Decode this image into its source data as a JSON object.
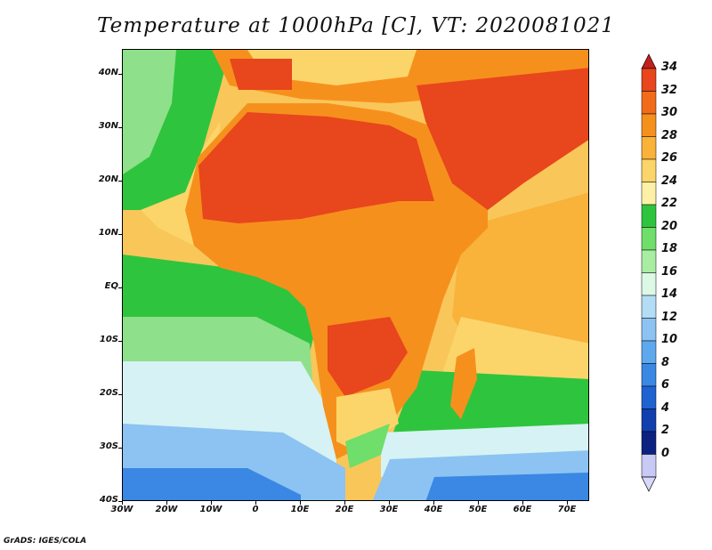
{
  "title": "Temperature at 1000hPa [C], VT: 2020081021",
  "footer": "GrADS: IGES/COLA",
  "x_ticks": [
    "30W",
    "20W",
    "10W",
    "0",
    "10E",
    "20E",
    "30E",
    "40E",
    "50E",
    "60E",
    "70E"
  ],
  "y_ticks": [
    "40N",
    "30N",
    "20N",
    "10N",
    "EQ",
    "10S",
    "20S",
    "30S",
    "40S"
  ],
  "colorbar": {
    "labels": [
      "34",
      "32",
      "30",
      "28",
      "26",
      "24",
      "22",
      "20",
      "18",
      "16",
      "14",
      "12",
      "10",
      "8",
      "6",
      "4",
      "2",
      "0"
    ],
    "colors": [
      "#e8461c",
      "#f26b1a",
      "#f6901d",
      "#f9b23a",
      "#fcd56a",
      "#fef0a6",
      "#2fc43e",
      "#6fde6a",
      "#a9eda2",
      "#dcf9e6",
      "#b3dcf5",
      "#8cc3f2",
      "#5ea9ee",
      "#3a87e4",
      "#1f63d1",
      "#123fae",
      "#0b2280",
      "#c9c9f6"
    ],
    "top_arrow_color": "#c2201c",
    "bottom_arrow_color": "#d8d8fa"
  },
  "map_colors": {
    "ocean_deep_south": "#2f6fd8",
    "ocean_cool": "#7fb8ef",
    "ocean_pale": "#d6f2f4",
    "ocean_green": "#2fc43e",
    "ocean_light_green": "#8fe08a",
    "ocean_warm": "#fcd56a",
    "ocean_orange": "#f9b23a",
    "land_hot": "#e8461c",
    "land_warm": "#f26b1a",
    "land_orange": "#f6901d"
  }
}
